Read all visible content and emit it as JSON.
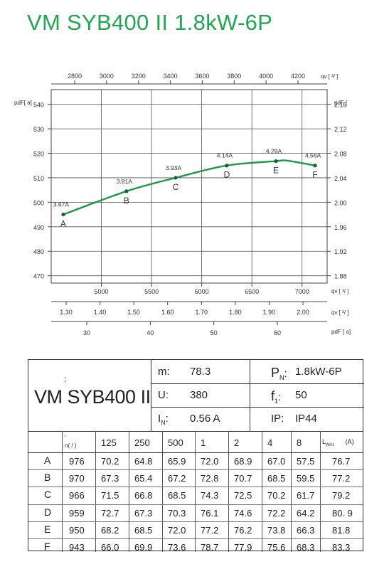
{
  "title": "VM SYB400 II 1.8kW-6P",
  "chart_data": {
    "type": "line",
    "top_axis": {
      "label": "qv [ ³/ ]",
      "ticks": [
        2800,
        3000,
        3200,
        3400,
        3600,
        3800,
        4000,
        4200
      ]
    },
    "left_axis": {
      "label": "pdF[ a]",
      "ticks": [
        470,
        480,
        490,
        500,
        510,
        520,
        530,
        540
      ],
      "ylim": [
        467,
        546
      ]
    },
    "right_axis": {
      "label": "pdF [",
      "ticks": [
        "2.16",
        "2.12",
        "2.08",
        "2.04",
        "2.00",
        "1.96",
        "1.92",
        "1.88"
      ]
    },
    "bottom_axis_1": {
      "label": "qv [ ³/ ]",
      "ticks": [
        5000,
        5500,
        6000,
        6500,
        7000
      ],
      "xlim": [
        4500,
        7250
      ]
    },
    "bottom_axis_2": {
      "label": "qv [ ³/ ]",
      "ticks": [
        "1.30",
        "1.40",
        "1.50",
        "1.60",
        "1.70",
        "1.80",
        "1.90",
        "2.00"
      ]
    },
    "bottom_axis_3": {
      "label": "pdF [ a]",
      "ticks": [
        30,
        40,
        50,
        60
      ]
    },
    "points": [
      {
        "id": "A",
        "x": 4620,
        "y": 495,
        "current": "3.67A"
      },
      {
        "id": "B",
        "x": 5250,
        "y": 504.5,
        "current": "3.81A"
      },
      {
        "id": "C",
        "x": 5740,
        "y": 510,
        "current": "3.93A"
      },
      {
        "id": "D",
        "x": 6250,
        "y": 515,
        "current": "4.14A"
      },
      {
        "id": "E",
        "x": 6740,
        "y": 516.8,
        "current": "4.29A"
      },
      {
        "id": "F",
        "x": 7130,
        "y": 515,
        "current": "4.56A"
      }
    ],
    "curve_peak": {
      "x": 6850,
      "y": 517
    },
    "line_color": "#1a9a48",
    "grid": true
  },
  "spec": {
    "model_colon": ":",
    "model_name": "VM SYB400 II",
    "m_label": "m:",
    "m_value": "78.3",
    "u_label": "U:",
    "u_value": "380",
    "in_label": "I",
    "in_sub": "N",
    "in_colon": ":",
    "in_value": "0.56  A",
    "pn_label": "P",
    "pn_sub": "N",
    "pn_colon": ":",
    "pn_value": "1.8kW-6P",
    "f_label": "f",
    "f_sub": "1",
    "f_colon": ":",
    "f_value": "50",
    "ip_label": "IP:",
    "ip_value": "IP44"
  },
  "table": {
    "header_n": "n( / )",
    "header_mark": "'",
    "headers": [
      "125",
      "250",
      "500",
      "1",
      "2",
      "4",
      "8"
    ],
    "lw_label": "L",
    "lw_sub": "WAI",
    "lw_unit": "(A)",
    "rows": [
      {
        "id": "A",
        "n": "976",
        "v": [
          "70.2",
          "64.8",
          "65.9",
          "72.0",
          "68.9",
          "67.0",
          "57.5"
        ],
        "lw": "76.7"
      },
      {
        "id": "B",
        "n": "970",
        "v": [
          "67.3",
          "65.4",
          "67.2",
          "72.8",
          "70.7",
          "68.5",
          "59.5"
        ],
        "lw": "77.2"
      },
      {
        "id": "C",
        "n": "966",
        "v": [
          "71.5",
          "66.8",
          "68.5",
          "74.3",
          "72.5",
          "70.2",
          "61.7"
        ],
        "lw": "79.2"
      },
      {
        "id": "D",
        "n": "959",
        "v": [
          "72.7",
          "67.3",
          "70.3",
          "76.1",
          "74.6",
          "72.2",
          "64.2"
        ],
        "lw": "80. 9"
      },
      {
        "id": "E",
        "n": "950",
        "v": [
          "68.2",
          "68.5",
          "72.0",
          "77.2",
          "76.2",
          "73.8",
          "66.3"
        ],
        "lw": "81.8"
      },
      {
        "id": "F",
        "n": "943",
        "v": [
          "66.0",
          "69.9",
          "73.6",
          "78.7",
          "77.9",
          "75.6",
          "68.3"
        ],
        "lw": "83.3"
      }
    ]
  }
}
